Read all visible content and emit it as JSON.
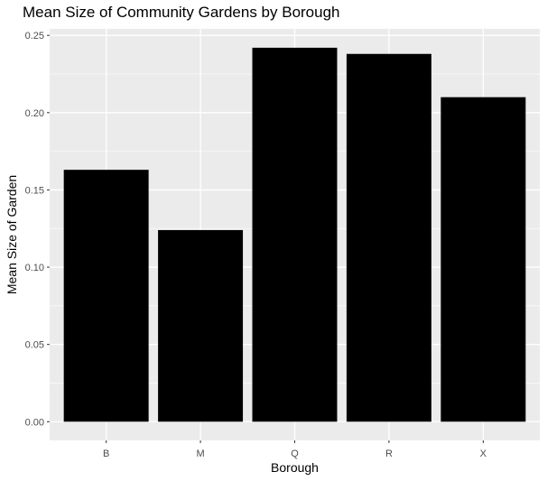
{
  "chart_data": {
    "type": "bar",
    "title": "Mean Size of Community Gardens by Borough",
    "xlabel": "Borough",
    "ylabel": "Mean Size of Garden",
    "categories": [
      "B",
      "M",
      "Q",
      "R",
      "X"
    ],
    "values": [
      0.163,
      0.124,
      0.242,
      0.238,
      0.21
    ],
    "ylim": [
      -0.0121,
      0.2542
    ],
    "yticks": [
      0.0,
      0.05,
      0.1,
      0.15,
      0.2,
      0.25
    ],
    "ytick_labels": [
      "0.00",
      "0.05",
      "0.10",
      "0.15",
      "0.20",
      "0.25"
    ],
    "grid": true,
    "colors": {
      "bar": "#000000",
      "panel": "#ebebeb",
      "grid": "#ffffff"
    }
  }
}
